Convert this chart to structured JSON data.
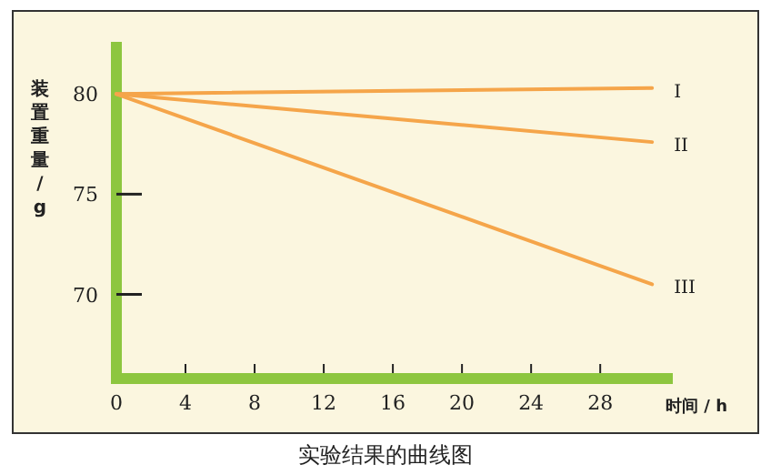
{
  "chart_data": {
    "type": "line",
    "title": "实验结果的曲线图",
    "xlabel": "时间 / h",
    "ylabel": "装置重量/g",
    "xlim": [
      0,
      32.2
    ],
    "ylim": [
      65.8,
      82.6
    ],
    "xticks": [
      0,
      4,
      8,
      12,
      16,
      20,
      24,
      28
    ],
    "yticks": [
      70,
      75,
      80
    ],
    "x": [
      0,
      31
    ],
    "series": [
      {
        "name": "I",
        "color": "#f5a54a",
        "values": [
          80,
          80.3
        ]
      },
      {
        "name": "II",
        "color": "#f5a54a",
        "values": [
          80,
          77.6
        ]
      },
      {
        "name": "III",
        "color": "#f5a54a",
        "values": [
          80,
          70.5
        ]
      }
    ]
  }
}
